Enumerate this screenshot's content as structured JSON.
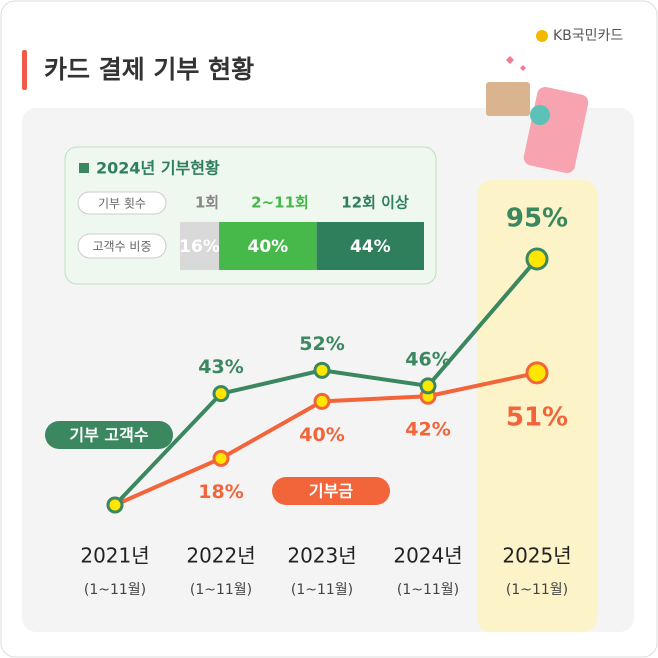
{
  "header": {
    "title": "카드 결제 기부 현황",
    "brand": "KB국민카드"
  },
  "chart_data": [
    {
      "type": "line",
      "categories": [
        "2021년",
        "2022년",
        "2023년",
        "2024년",
        "2025년"
      ],
      "sublabels": [
        "(1~11월)",
        "(1~11월)",
        "(1~11월)",
        "(1~11월)",
        "(1~11월)"
      ],
      "ylim": [
        0,
        100
      ],
      "series": [
        {
          "name": "기부 고객수",
          "color": "#3a8760",
          "values": [
            0,
            43,
            52,
            46,
            95
          ],
          "value_labels": [
            null,
            "43%",
            "52%",
            "46%",
            "95%"
          ]
        },
        {
          "name": "기부금",
          "color": "#f2643a",
          "values": [
            0,
            18,
            40,
            42,
            51
          ],
          "value_labels": [
            null,
            "18%",
            "40%",
            "42%",
            "51%"
          ]
        }
      ]
    },
    {
      "type": "stacked_bar",
      "title": "2024년 기부현황",
      "row_labels": [
        "기부 횟수",
        "고객수 비중"
      ],
      "categories": [
        "1회",
        "2~11회",
        "12회 이상"
      ],
      "values": [
        16,
        40,
        44
      ],
      "value_labels": [
        "16%",
        "40%",
        "44%"
      ],
      "colors": [
        "#d9d9d9",
        "#47b84a",
        "#2f7e5c"
      ],
      "xlim": [
        0,
        100
      ]
    }
  ]
}
